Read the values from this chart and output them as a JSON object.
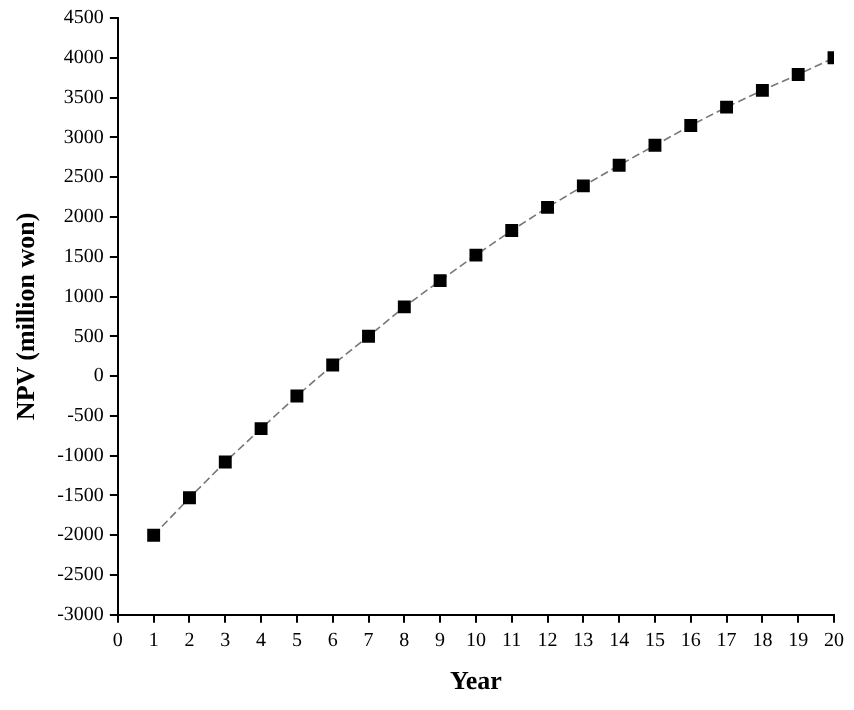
{
  "chart_data": {
    "type": "line",
    "xlabel": "Year",
    "ylabel": "NPV (million won)",
    "x": [
      1,
      2,
      3,
      4,
      5,
      6,
      7,
      8,
      9,
      10,
      11,
      12,
      13,
      14,
      15,
      16,
      17,
      18,
      19,
      20
    ],
    "series": [
      {
        "color": "#000000",
        "values": [
          -2000,
          -1530,
          -1080,
          -660,
          -250,
          140,
          500,
          870,
          1200,
          1520,
          1830,
          2120,
          2390,
          2650,
          2900,
          3150,
          3380,
          3590,
          3790,
          4000
        ]
      }
    ],
    "xlim": [
      0,
      20
    ],
    "xticks": [
      0,
      1,
      2,
      3,
      4,
      5,
      6,
      7,
      8,
      9,
      10,
      11,
      12,
      13,
      14,
      15,
      16,
      17,
      18,
      19,
      20
    ],
    "ylim": [
      -3000,
      4500
    ],
    "yticks": [
      -3000,
      -2500,
      -2000,
      -1500,
      -1000,
      -500,
      0,
      500,
      1000,
      1500,
      2000,
      2500,
      3000,
      3500,
      4000,
      4500
    ],
    "grid": false,
    "legend": false,
    "marker": "square",
    "line_style": "dashed"
  }
}
